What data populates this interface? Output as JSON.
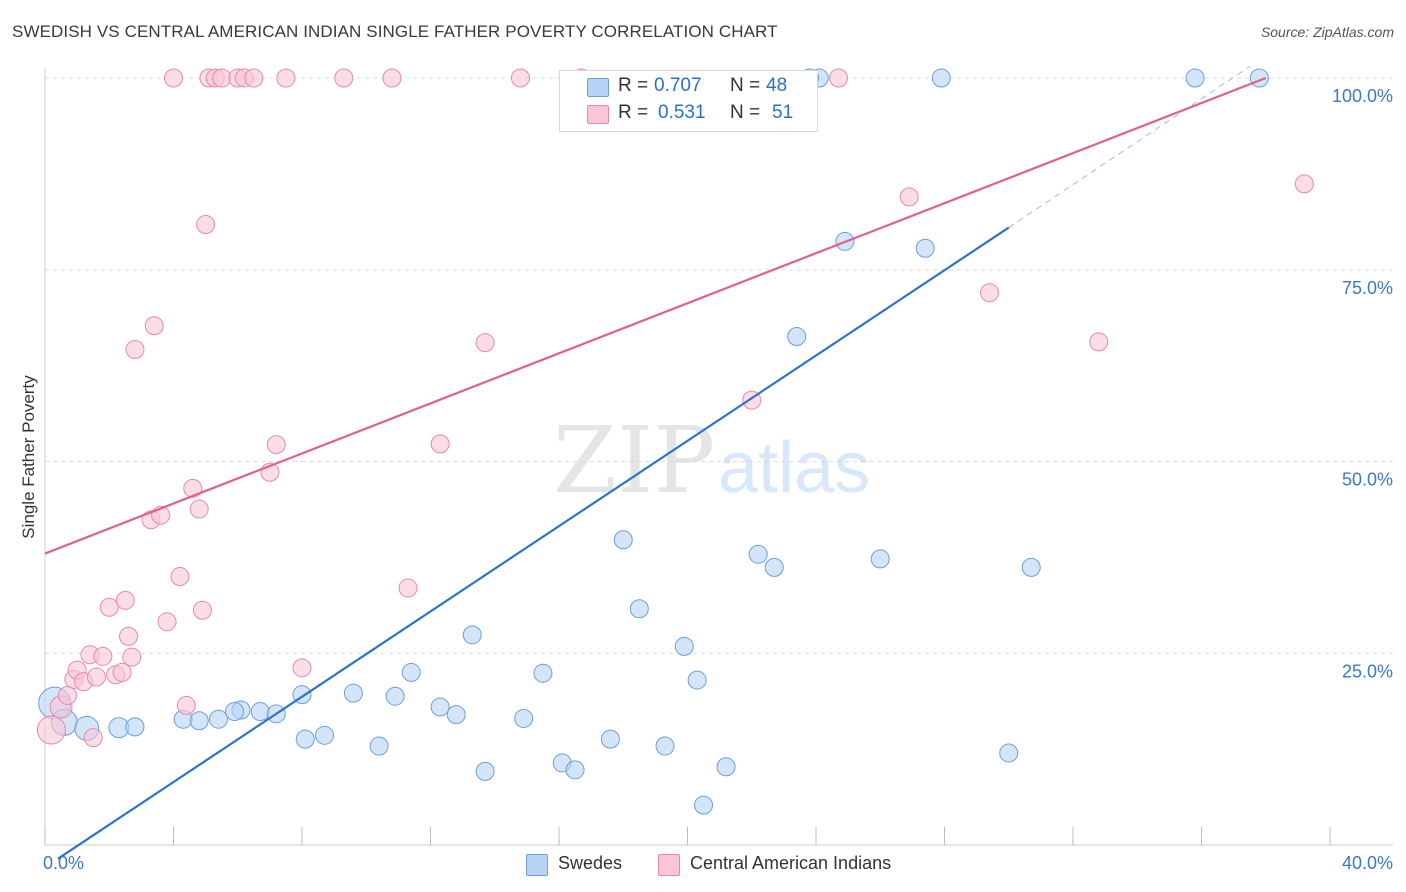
{
  "title": "SWEDISH VS CENTRAL AMERICAN INDIAN SINGLE FATHER POVERTY CORRELATION CHART",
  "source": "Source: ZipAtlas.com",
  "watermark": {
    "zip": "ZIP",
    "atlas": "atlas"
  },
  "legend": {
    "r_label": "R =",
    "n_label": "N =",
    "items": [
      {
        "r": "0.707",
        "n": "48",
        "fill": "#b9d3f5",
        "stroke": "#6a9fdc"
      },
      {
        "r": "0.531",
        "n": "51",
        "fill": "#f8c6d5",
        "stroke": "#e88aa8"
      }
    ]
  },
  "bottom_legend": [
    {
      "label": "Swedes",
      "fill": "#b9d3f5",
      "stroke": "#6a9fdc"
    },
    {
      "label": "Central American Indians",
      "fill": "#f8c6d5",
      "stroke": "#e88aa8"
    }
  ],
  "chart_data": {
    "type": "scatter",
    "title": "SWEDISH VS CENTRAL AMERICAN INDIAN SINGLE FATHER POVERTY CORRELATION CHART",
    "xlabel": "",
    "ylabel": "Single Father Poverty",
    "xlim": [
      0,
      40
    ],
    "ylim": [
      0,
      100
    ],
    "x_tick_labels": [
      "0.0%",
      "40.0%"
    ],
    "y_tick_labels": [
      "25.0%",
      "50.0%",
      "75.0%",
      "100.0%"
    ],
    "y_ticks": [
      25,
      50,
      75,
      100
    ],
    "grid": true,
    "legend_position": "top-center",
    "series": [
      {
        "name": "Swedes",
        "color": "#6a9fdc",
        "fill": "#b9d3f5",
        "line_color": "#2f73c9",
        "trend": {
          "x0": 0.4,
          "y0": -1.8,
          "x1": 30.0,
          "y1": 80.5,
          "dash_to_x": 37.5,
          "dash_to_y": 101.5
        },
        "points": [
          [
            0.3,
            18.5,
            16
          ],
          [
            0.6,
            16.0,
            13
          ],
          [
            1.3,
            15.2,
            12
          ],
          [
            2.3,
            15.3,
            10
          ],
          [
            2.8,
            15.4,
            9
          ],
          [
            4.3,
            16.4,
            9
          ],
          [
            4.8,
            16.2,
            9
          ],
          [
            5.4,
            16.4,
            9
          ],
          [
            6.1,
            17.6,
            9
          ],
          [
            6.7,
            17.4,
            9
          ],
          [
            5.9,
            17.4,
            9
          ],
          [
            7.2,
            17.1,
            9
          ],
          [
            8.0,
            19.6,
            9
          ],
          [
            8.1,
            13.8,
            9
          ],
          [
            8.7,
            14.3,
            9
          ],
          [
            9.6,
            19.8,
            9
          ],
          [
            10.4,
            12.9,
            9
          ],
          [
            10.9,
            19.4,
            9
          ],
          [
            11.4,
            22.5,
            9
          ],
          [
            12.3,
            18.0,
            9
          ],
          [
            12.8,
            17.0,
            9
          ],
          [
            13.3,
            27.4,
            9
          ],
          [
            13.7,
            9.6,
            9
          ],
          [
            14.9,
            16.5,
            9
          ],
          [
            15.5,
            22.4,
            9
          ],
          [
            16.1,
            10.7,
            9
          ],
          [
            16.5,
            9.8,
            9
          ],
          [
            17.6,
            13.8,
            9
          ],
          [
            18.0,
            39.8,
            9
          ],
          [
            18.5,
            30.8,
            9
          ],
          [
            19.3,
            12.9,
            9
          ],
          [
            19.9,
            25.9,
            9
          ],
          [
            20.3,
            21.5,
            9
          ],
          [
            20.5,
            5.2,
            9
          ],
          [
            21.2,
            10.2,
            9
          ],
          [
            22.2,
            37.9,
            9
          ],
          [
            22.7,
            36.2,
            9
          ],
          [
            23.4,
            66.3,
            9
          ],
          [
            24.1,
            100.0,
            9
          ],
          [
            24.9,
            78.7,
            9
          ],
          [
            26.0,
            37.3,
            9
          ],
          [
            27.4,
            77.8,
            9
          ],
          [
            27.9,
            100.0,
            9
          ],
          [
            30.0,
            12.0,
            9
          ],
          [
            30.7,
            36.2,
            9
          ],
          [
            35.8,
            100.0,
            9
          ],
          [
            37.8,
            100.0,
            9
          ],
          [
            23.8,
            100.0,
            9
          ]
        ]
      },
      {
        "name": "Central American Indians",
        "color": "#e88aa8",
        "fill": "#f8c6d5",
        "line_color": "#e0608a",
        "trend": {
          "x0": 0.0,
          "y0": 38.0,
          "x1": 38.0,
          "y1": 100.0
        },
        "points": [
          [
            0.2,
            15.0,
            14
          ],
          [
            0.5,
            18.0,
            11
          ],
          [
            0.7,
            19.5,
            9
          ],
          [
            0.9,
            21.6,
            9
          ],
          [
            1.0,
            22.8,
            9
          ],
          [
            1.2,
            21.3,
            9
          ],
          [
            1.4,
            24.8,
            9
          ],
          [
            1.5,
            14.0,
            9
          ],
          [
            1.6,
            21.9,
            9
          ],
          [
            1.8,
            24.6,
            9
          ],
          [
            2.0,
            31.0,
            9
          ],
          [
            2.2,
            22.2,
            9
          ],
          [
            2.4,
            22.5,
            9
          ],
          [
            2.5,
            31.9,
            9
          ],
          [
            2.6,
            27.2,
            9
          ],
          [
            2.7,
            24.5,
            9
          ],
          [
            2.8,
            64.6,
            9
          ],
          [
            3.3,
            42.4,
            9
          ],
          [
            3.4,
            67.7,
            9
          ],
          [
            3.6,
            43.0,
            9
          ],
          [
            3.8,
            29.1,
            9
          ],
          [
            4.0,
            100.0,
            9
          ],
          [
            4.2,
            35.0,
            9
          ],
          [
            4.4,
            18.2,
            9
          ],
          [
            4.6,
            46.5,
            9
          ],
          [
            4.8,
            43.8,
            9
          ],
          [
            4.9,
            30.6,
            9
          ],
          [
            5.0,
            80.9,
            9
          ],
          [
            5.1,
            100.0,
            9
          ],
          [
            5.3,
            100.0,
            9
          ],
          [
            5.5,
            100.0,
            9
          ],
          [
            6.0,
            100.0,
            9
          ],
          [
            6.2,
            100.0,
            9
          ],
          [
            6.5,
            100.0,
            9
          ],
          [
            7.0,
            48.6,
            9
          ],
          [
            7.2,
            52.2,
            9
          ],
          [
            7.5,
            100.0,
            9
          ],
          [
            8.0,
            23.1,
            9
          ],
          [
            9.3,
            100.0,
            9
          ],
          [
            10.8,
            100.0,
            9
          ],
          [
            11.3,
            33.5,
            9
          ],
          [
            12.3,
            52.3,
            9
          ],
          [
            13.7,
            65.5,
            9
          ],
          [
            14.8,
            100.0,
            9
          ],
          [
            16.7,
            100.0,
            9
          ],
          [
            22.0,
            58.0,
            9
          ],
          [
            24.7,
            100.0,
            9
          ],
          [
            26.9,
            84.5,
            9
          ],
          [
            29.4,
            72.0,
            9
          ],
          [
            32.8,
            65.6,
            9
          ],
          [
            39.2,
            86.2,
            9
          ]
        ]
      }
    ]
  }
}
